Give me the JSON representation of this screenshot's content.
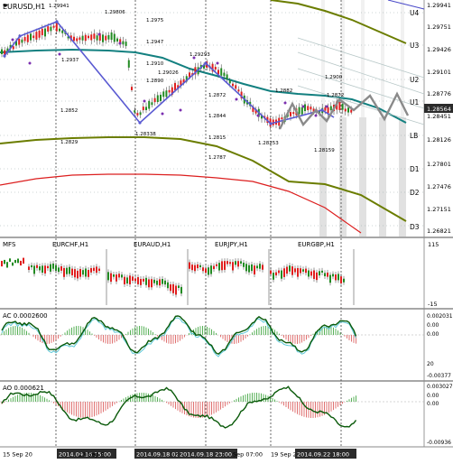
{
  "colors": {
    "bull": "#228b22",
    "bear": "#e01e1e",
    "ma_teal": "#138080",
    "ma_olive": "#6b7d00",
    "ma_red": "#dc1e1e",
    "zigzag": "#5a5ad2",
    "forecast": "#8a8a8a",
    "osc_green": "#0a5a0a",
    "osc_cyan": "#5ec8d8",
    "shade": "#d9d9d9",
    "price_box": "#2b2b2b"
  },
  "main_chart": {
    "title": "EURUSD,H1",
    "price_axis": [
      "1.29941",
      "1.29751",
      "1.29426",
      "1.29101",
      "1.28776",
      "1.28564",
      "1.28451",
      "1.28126",
      "1.27801",
      "1.27476",
      "1.27151",
      "1.26821"
    ],
    "current_price": "1.28564",
    "levels": [
      "U4",
      "U3",
      "U2",
      "U1",
      "LB",
      "D1",
      "D2",
      "D3"
    ],
    "annotations": {
      "top_high": "1.29941",
      "a1": "1.29806",
      "a2": "1.2975",
      "a3": "1.2947",
      "a4": "1.2937",
      "a5": "1.2910",
      "a6": "1.29026",
      "a7": "1.2890",
      "a8": "1.2852",
      "a9": "1.2829",
      "a10": "1.29293",
      "a11": "1.2872",
      "a12": "1.2844",
      "a13": "1.2815",
      "a14": "1.28338",
      "a15": "1.2787",
      "a16": "1.28253",
      "a17": "1.2882",
      "a18": "1.2900",
      "a19": "1.2872",
      "a20": "1.28159"
    }
  },
  "pairs_panel": {
    "title": "MFS",
    "labels": [
      "EURCHF,H1",
      "EURAUD,H1",
      "EURJPY,H1",
      "EURGBP,H1"
    ],
    "axis": [
      "115",
      "-15"
    ]
  },
  "ac_panel": {
    "title": "AC 0.0002600",
    "axis": [
      "0.002031",
      "0.00",
      "0.00",
      "20",
      "-0.00377"
    ]
  },
  "ao_panel": {
    "title": "AO 0.000621",
    "axis": [
      "0.003027",
      "0.00",
      "0.00",
      "-0.00936"
    ]
  },
  "time_axis": {
    "labels": [
      "15 Sep 20",
      "2014.09.16 15:00",
      "17 Sep 0",
      "2014.09.18 02:00",
      "2014.09.18 23:00",
      "Sep 07:00",
      "19 Sep 2",
      "2014.09.22 18:00"
    ],
    "highlighted": [
      false,
      true,
      false,
      true,
      true,
      false,
      false,
      true
    ]
  }
}
